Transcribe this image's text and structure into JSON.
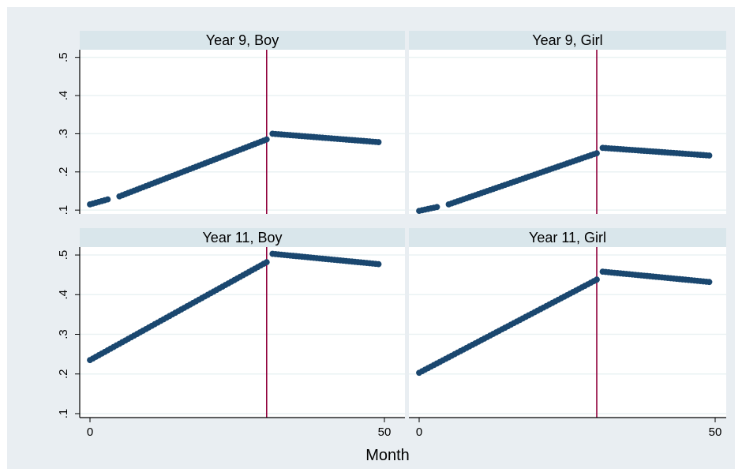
{
  "colors": {
    "outer_background": "#e9eef2",
    "strip_background": "#d9e6eb",
    "panel_background": "#ffffff",
    "grid": "#eaf2f3",
    "marker": "#1a476f",
    "reference_line": "#90003b"
  },
  "chart_data": {
    "type": "scatter",
    "layout": "2x2 facets",
    "xlabel": "Month",
    "ylabel": "",
    "x_ticks": [
      0,
      50
    ],
    "xlim": [
      -1,
      50
    ],
    "reference_line_x": 30,
    "grid": true,
    "panels": [
      {
        "title": "Year 9, Boy",
        "ylim": [
          0.09,
          0.52
        ],
        "y_ticks": [
          0.1,
          0.2,
          0.3,
          0.4,
          0.5
        ],
        "y_tick_labels": [
          ".1",
          ".2",
          ".3",
          ".4",
          ".5"
        ],
        "segments": [
          {
            "x_start": 0,
            "x_end": 3,
            "y_start": 0.115,
            "y_end": 0.128,
            "step": 0.5
          },
          {
            "x_start": 5,
            "x_end": 30,
            "y_start": 0.136,
            "y_end": 0.285,
            "step": 0.5
          },
          {
            "x_start": 31,
            "x_end": 49,
            "y_start": 0.3,
            "y_end": 0.278,
            "step": 0.5
          }
        ]
      },
      {
        "title": "Year 9, Girl",
        "ylim": [
          0.09,
          0.52
        ],
        "y_ticks": [
          0.1,
          0.2,
          0.3,
          0.4,
          0.5
        ],
        "y_tick_labels": [
          ".1",
          ".2",
          ".3",
          ".4",
          ".5"
        ],
        "segments": [
          {
            "x_start": 0,
            "x_end": 3,
            "y_start": 0.098,
            "y_end": 0.108,
            "step": 0.5
          },
          {
            "x_start": 5,
            "x_end": 30,
            "y_start": 0.115,
            "y_end": 0.249,
            "step": 0.5
          },
          {
            "x_start": 31,
            "x_end": 49,
            "y_start": 0.263,
            "y_end": 0.243,
            "step": 0.5
          }
        ]
      },
      {
        "title": "Year 11, Boy",
        "ylim": [
          0.09,
          0.52
        ],
        "y_ticks": [
          0.1,
          0.2,
          0.3,
          0.4,
          0.5
        ],
        "y_tick_labels": [
          ".1",
          ".2",
          ".3",
          ".4",
          ".5"
        ],
        "segments": [
          {
            "x_start": 0,
            "x_end": 30,
            "y_start": 0.235,
            "y_end": 0.482,
            "step": 0.5
          },
          {
            "x_start": 31,
            "x_end": 49,
            "y_start": 0.503,
            "y_end": 0.477,
            "step": 0.5
          }
        ]
      },
      {
        "title": "Year 11, Girl",
        "ylim": [
          0.09,
          0.52
        ],
        "y_ticks": [
          0.1,
          0.2,
          0.3,
          0.4,
          0.5
        ],
        "y_tick_labels": [
          ".1",
          ".2",
          ".3",
          ".4",
          ".5"
        ],
        "segments": [
          {
            "x_start": 0,
            "x_end": 30,
            "y_start": 0.203,
            "y_end": 0.438,
            "step": 0.5
          },
          {
            "x_start": 31,
            "x_end": 49,
            "y_start": 0.458,
            "y_end": 0.432,
            "step": 0.5
          }
        ]
      }
    ]
  }
}
